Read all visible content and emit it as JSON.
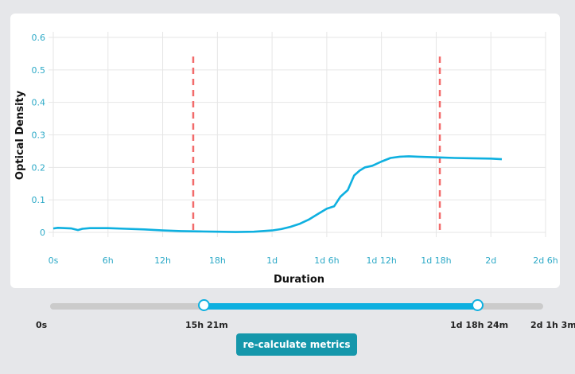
{
  "chart_data": {
    "type": "line",
    "title": "",
    "xlabel": "Duration",
    "ylabel": "Optical Density",
    "x_ticks": [
      "0s",
      "6h",
      "12h",
      "18h",
      "1d",
      "1d 6h",
      "1d 12h",
      "1d 18h",
      "2d",
      "2d 6h"
    ],
    "x_ticks_hours": [
      0,
      6,
      12,
      18,
      24,
      30,
      36,
      42,
      48,
      54
    ],
    "y_ticks": [
      "0",
      "0.1",
      "0.2",
      "0.3",
      "0.4",
      "0.5",
      "0.6"
    ],
    "xlim_hours": [
      0,
      54
    ],
    "ylim": [
      0,
      0.6
    ],
    "grid": true,
    "legend": null,
    "series": [
      {
        "name": "Optical Density",
        "color": "#0eb0e0",
        "x_hours": [
          0,
          0.5,
          2,
          2.7,
          3.2,
          4,
          6,
          8,
          10,
          12,
          14,
          16,
          18,
          20,
          22,
          24,
          25,
          26,
          27,
          28,
          29,
          30,
          30.8,
          31.5,
          32.3,
          33,
          33.6,
          34.2,
          35,
          36,
          37,
          38,
          39,
          40,
          42,
          44,
          46,
          48,
          49.2
        ],
        "values": [
          0.012,
          0.014,
          0.012,
          0.007,
          0.011,
          0.013,
          0.013,
          0.011,
          0.009,
          0.006,
          0.004,
          0.003,
          0.002,
          0.001,
          0.002,
          0.006,
          0.01,
          0.017,
          0.026,
          0.039,
          0.056,
          0.073,
          0.08,
          0.11,
          0.13,
          0.175,
          0.19,
          0.2,
          0.205,
          0.218,
          0.229,
          0.233,
          0.234,
          0.233,
          0.231,
          0.229,
          0.228,
          0.227,
          0.225
        ]
      }
    ],
    "annotations": [
      {
        "type": "vline",
        "x_hours": 15.35,
        "label": "15h 21m",
        "color": "#f26b6b",
        "style": "dashed"
      },
      {
        "type": "vline",
        "x_hours": 42.4,
        "label": "1d 18h 24m",
        "color": "#f26b6b",
        "style": "dashed"
      }
    ]
  },
  "range_slider": {
    "min_label": "0s",
    "max_label": "2d 1h 3m",
    "start_label": "15h 21m",
    "end_label": "1d 18h 24m",
    "start_fraction": 0.311,
    "end_fraction": 0.866,
    "track_color": "#cbcbcb",
    "fill_color": "#0eb0e0"
  },
  "actions": {
    "recalculate_label": "re-calculate metrics",
    "button_color": "#1597ab"
  },
  "colors": {
    "tick_text": "#2ca9c7",
    "axis_title": "#111111",
    "grid": "#e6e6e6",
    "background": "#e6e7ea",
    "card": "#ffffff"
  }
}
